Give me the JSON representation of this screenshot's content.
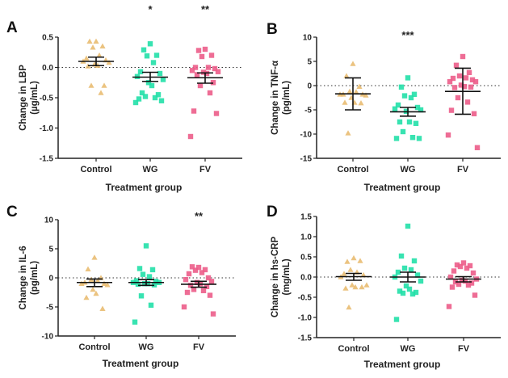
{
  "colors": {
    "Control": "#e8b86a",
    "WG": "#22e0a8",
    "FV": "#ec5d8a",
    "axis": "#222222",
    "errorbar": "#111111"
  },
  "markers": {
    "Control": "triangle",
    "WG": "square",
    "FV": "square"
  },
  "chart_data": [
    {
      "panel": "A",
      "type": "scatter",
      "title": "",
      "xlabel": "Treatment group",
      "ylabel_line1": "Change in LBP",
      "ylabel_line2": "(µg/mL)",
      "categories": [
        "Control",
        "WG",
        "FV"
      ],
      "ylim": [
        -1.5,
        0.5
      ],
      "yticks": [
        0.5,
        0.0,
        -0.5,
        -1.0,
        -1.5
      ],
      "ytick_labels": [
        "0.5",
        "0.0",
        "-0.5",
        "-1.0",
        "-1.5"
      ],
      "reference_line": 0,
      "significance": [
        "",
        "*",
        "**"
      ],
      "series": [
        {
          "name": "Control",
          "values": [
            0.43,
            0.43,
            0.35,
            0.33,
            0.2,
            0.15,
            0.12,
            0.1,
            0.08,
            0.05,
            0.03,
            0.02,
            -0.3,
            -0.3,
            -0.42
          ],
          "mean": 0.1,
          "err_low": 0.03,
          "err_high": 0.17
        },
        {
          "name": "WG",
          "values": [
            0.39,
            0.29,
            0.2,
            0.19,
            0.08,
            -0.07,
            -0.1,
            -0.15,
            -0.2,
            -0.25,
            -0.3,
            -0.42,
            -0.45,
            -0.48,
            -0.5,
            -0.52,
            -0.55,
            -0.58
          ],
          "mean": -0.16,
          "err_low": -0.23,
          "err_high": -0.08
        },
        {
          "name": "FV",
          "values": [
            0.3,
            0.28,
            0.2,
            0.18,
            0.0,
            0.0,
            -0.02,
            -0.05,
            -0.07,
            -0.08,
            -0.1,
            -0.12,
            -0.25,
            -0.3,
            -0.42,
            -0.72,
            -0.76,
            -1.14
          ],
          "mean": -0.17,
          "err_low": -0.26,
          "err_high": -0.09
        }
      ]
    },
    {
      "panel": "B",
      "type": "scatter",
      "title": "",
      "xlabel": "Treatment group",
      "ylabel_line1": "Change in TNF-α",
      "ylabel_line2": "(pg/mL)",
      "categories": [
        "Control",
        "WG",
        "FV"
      ],
      "ylim": [
        -15,
        10
      ],
      "yticks": [
        10,
        5,
        0,
        -5,
        -10,
        -15
      ],
      "ytick_labels": [
        "10",
        "5",
        "0",
        "-5",
        "-10",
        "-15"
      ],
      "reference_line": 0,
      "significance": [
        "",
        "***",
        ""
      ],
      "series": [
        {
          "name": "Control",
          "values": [
            4.5,
            2.0,
            -0.2,
            -1.2,
            -1.3,
            -1.8,
            -1.8,
            -1.8,
            -2.0,
            -2.5,
            -3.5,
            -3.5,
            -3.6,
            -9.8
          ],
          "mean": -1.7,
          "err_low": -5.0,
          "err_high": 1.6
        },
        {
          "name": "WG",
          "values": [
            1.6,
            -0.3,
            -1.8,
            -2.1,
            -2.5,
            -4.0,
            -4.5,
            -4.8,
            -5.0,
            -5.3,
            -7.5,
            -7.5,
            -7.8,
            -9.5,
            -10.7,
            -10.9,
            -10.9
          ],
          "mean": -5.4,
          "err_low": -6.3,
          "err_high": -4.5
        },
        {
          "name": "FV",
          "values": [
            6.0,
            4.2,
            2.7,
            2.0,
            1.6,
            1.5,
            1.2,
            0.8,
            0.8,
            0.1,
            -0.2,
            -0.4,
            -0.3,
            -2.5,
            -3.4,
            -5.1,
            -5.8,
            -10.2,
            -12.8
          ],
          "mean": -1.2,
          "err_low": -5.9,
          "err_high": 3.6
        }
      ]
    },
    {
      "panel": "C",
      "type": "scatter",
      "title": "",
      "xlabel": "Treatment group",
      "ylabel_line1": "Change in IL-6",
      "ylabel_line2": "(pg/mL)",
      "categories": [
        "Control",
        "WG",
        "FV"
      ],
      "ylim": [
        -10,
        10
      ],
      "yticks": [
        10,
        5,
        0,
        -5,
        -10
      ],
      "ytick_labels": [
        "10",
        "5",
        "0",
        "-5",
        "-10"
      ],
      "reference_line": 0,
      "significance": [
        "",
        "",
        "**"
      ],
      "series": [
        {
          "name": "Control",
          "values": [
            3.5,
            1.5,
            0.0,
            -0.3,
            -0.5,
            -0.8,
            -1.0,
            -1.0,
            -1.2,
            -2.0,
            -2.7,
            -3.4,
            -5.3
          ],
          "mean": -0.8,
          "err_low": -1.5,
          "err_high": -0.2
        },
        {
          "name": "WG",
          "values": [
            5.5,
            1.6,
            1.4,
            0.6,
            0.2,
            -0.5,
            -0.6,
            -0.8,
            -0.8,
            -1.0,
            -1.0,
            -1.1,
            -1.2,
            -3.1,
            -4.7,
            -7.6
          ],
          "mean": -0.8,
          "err_low": -1.3,
          "err_high": -0.3
        },
        {
          "name": "FV",
          "values": [
            1.8,
            1.9,
            1.4,
            1.3,
            0.9,
            0.7,
            0.0,
            -0.3,
            -0.6,
            -0.8,
            -1.0,
            -1.3,
            -1.5,
            -2.0,
            -2.2,
            -2.5,
            -3.0,
            -5.0,
            -6.2
          ],
          "mean": -1.1,
          "err_low": -1.6,
          "err_high": -0.6
        }
      ]
    },
    {
      "panel": "D",
      "type": "scatter",
      "title": "",
      "xlabel": "Treatment group",
      "ylabel_line1": "Change in hs-CRP",
      "ylabel_line2": "(mg/mL)",
      "categories": [
        "Control",
        "WG",
        "FV"
      ],
      "ylim": [
        -1.5,
        1.5
      ],
      "yticks": [
        1.5,
        1.0,
        0.5,
        0.0,
        -0.5,
        -1.0,
        -1.5
      ],
      "ytick_labels": [
        "1.5",
        "1.0",
        "0.5",
        "0.0",
        "-0.5",
        "-1.0",
        "-1.5"
      ],
      "reference_line": 0,
      "significance": [
        "",
        "",
        ""
      ],
      "series": [
        {
          "name": "Control",
          "values": [
            0.47,
            0.38,
            0.4,
            0.18,
            0.12,
            0.08,
            0.05,
            0.0,
            -0.2,
            -0.2,
            -0.25,
            -0.28,
            -0.25,
            -0.75
          ],
          "mean": 0.01,
          "err_low": -0.08,
          "err_high": 0.09
        },
        {
          "name": "WG",
          "values": [
            1.26,
            0.52,
            0.4,
            0.22,
            0.18,
            0.12,
            0.05,
            0.0,
            -0.1,
            -0.22,
            -0.3,
            -0.35,
            -0.38,
            -0.4,
            -0.42,
            -1.05
          ],
          "mean": 0.0,
          "err_low": -0.12,
          "err_high": 0.12
        },
        {
          "name": "FV",
          "values": [
            0.35,
            0.3,
            0.28,
            0.26,
            0.22,
            0.15,
            0.1,
            0.0,
            -0.05,
            -0.08,
            -0.1,
            -0.12,
            -0.15,
            -0.18,
            -0.2,
            -0.25,
            -0.45,
            -0.73
          ],
          "mean": -0.05,
          "err_low": -0.12,
          "err_high": 0.01
        }
      ]
    }
  ]
}
